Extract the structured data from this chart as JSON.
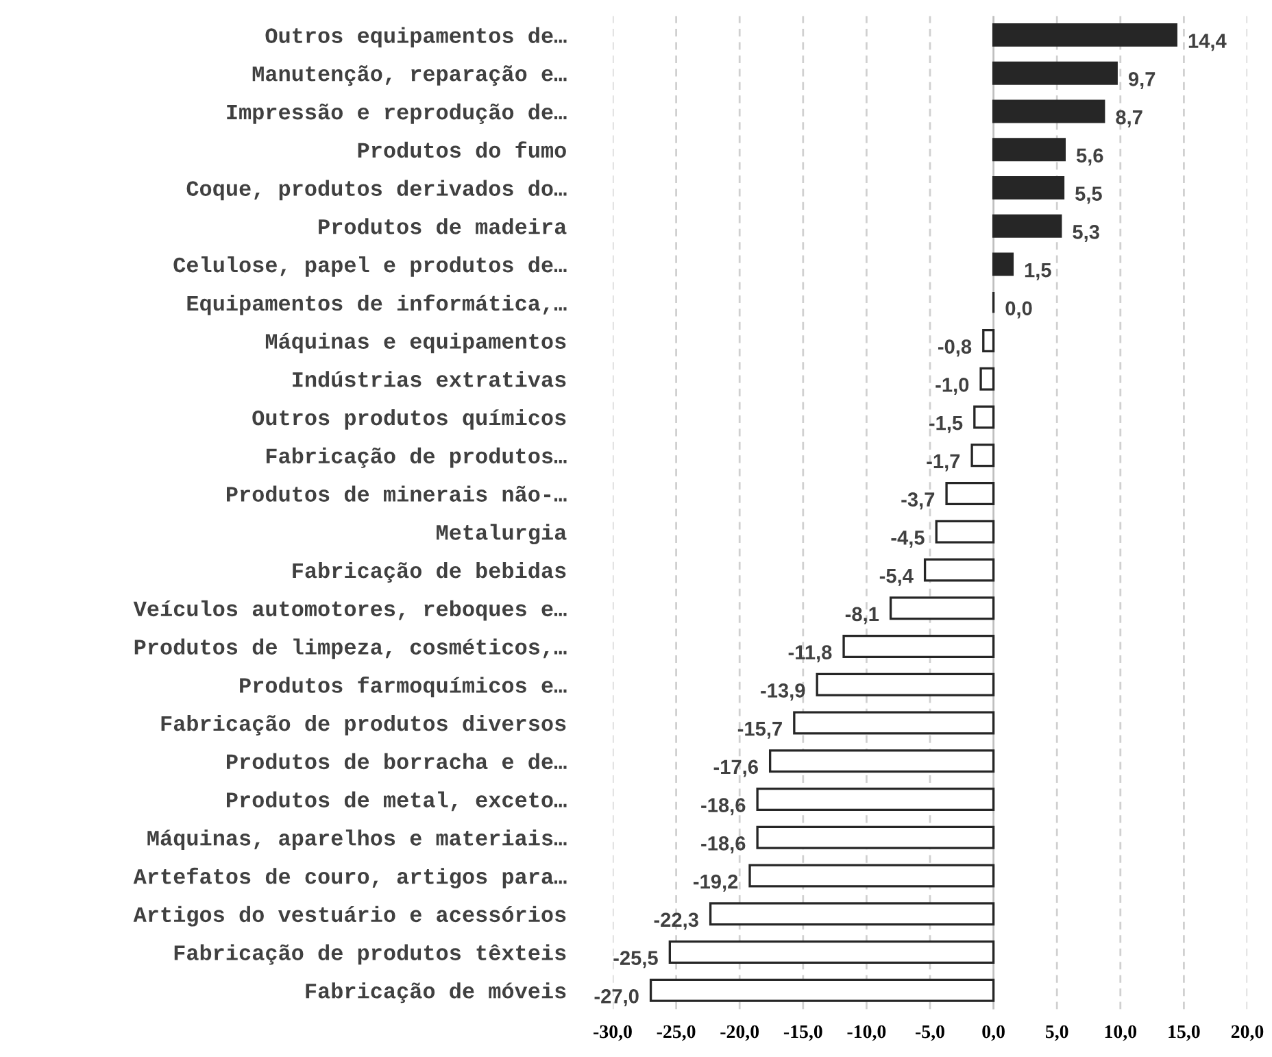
{
  "chart_data": {
    "type": "bar",
    "orientation": "horizontal",
    "categories": [
      "Outros equipamentos de…",
      "Manutenção, reparação e…",
      "Impressão e reprodução de…",
      "Produtos do fumo",
      "Coque, produtos derivados do…",
      "Produtos de madeira",
      "Celulose, papel e produtos de…",
      "Equipamentos de informática,…",
      "Máquinas e equipamentos",
      "Indústrias extrativas",
      "Outros produtos químicos",
      "Fabricação de produtos…",
      "Produtos de minerais não-…",
      "Metalurgia",
      "Fabricação de bebidas",
      "Veículos automotores, reboques e…",
      "Produtos de limpeza, cosméticos,…",
      "Produtos farmoquímicos e…",
      "Fabricação de produtos diversos",
      "Produtos de borracha e de…",
      "Produtos de metal, exceto…",
      "Máquinas, aparelhos e materiais…",
      "Artefatos de couro, artigos para…",
      "Artigos do vestuário e acessórios",
      "Fabricação de produtos têxteis",
      "Fabricação de móveis"
    ],
    "values": [
      14.4,
      9.7,
      8.7,
      5.6,
      5.5,
      5.3,
      1.5,
      0.0,
      -0.8,
      -1.0,
      -1.5,
      -1.7,
      -3.7,
      -4.5,
      -5.4,
      -8.1,
      -11.8,
      -13.9,
      -15.7,
      -17.6,
      -18.6,
      -18.6,
      -19.2,
      -22.3,
      -25.5,
      -27.0
    ],
    "value_labels": [
      "14,4",
      "9,7",
      "8,7",
      "5,6",
      "5,5",
      "5,3",
      "1,5",
      "0,0",
      "-0,8",
      "-1,0",
      "-1,5",
      "-1,7",
      "-3,7",
      "-4,5",
      "-5,4",
      "-8,1",
      "-11,8",
      "-13,9",
      "-15,7",
      "-17,6",
      "-18,6",
      "-18,6",
      "-19,2",
      "-22,3",
      "-25,5",
      "-27,0"
    ],
    "colors": [
      "#262626",
      "#262626",
      "#262626",
      "#262626",
      "#262626",
      "#262626",
      "#262626",
      "#262626",
      "#ffffff",
      "#ffffff",
      "#ffffff",
      "#ffffff",
      "#ffffff",
      "#ffffff",
      "#ffffff",
      "#ffffff",
      "#ffffff",
      "#ffffff",
      "#ffffff",
      "#ffffff",
      "#ffffff",
      "#ffffff",
      "#ffffff",
      "#ffffff",
      "#ffffff",
      "#ffffff"
    ],
    "xlim": [
      -30,
      20
    ],
    "xticks": [
      {
        "value": -30,
        "label": "-30,0"
      },
      {
        "value": -25,
        "label": "-25,0"
      },
      {
        "value": -20,
        "label": "-20,0"
      },
      {
        "value": -15,
        "label": "-15,0"
      },
      {
        "value": -10,
        "label": "-10,0"
      },
      {
        "value": -5,
        "label": "-5,0"
      },
      {
        "value": 0,
        "label": "0,0"
      },
      {
        "value": 5,
        "label": "5,0"
      },
      {
        "value": 10,
        "label": "10,0"
      },
      {
        "value": 15,
        "label": "15,0"
      },
      {
        "value": 20,
        "label": "20,0"
      }
    ],
    "grid": "x"
  }
}
